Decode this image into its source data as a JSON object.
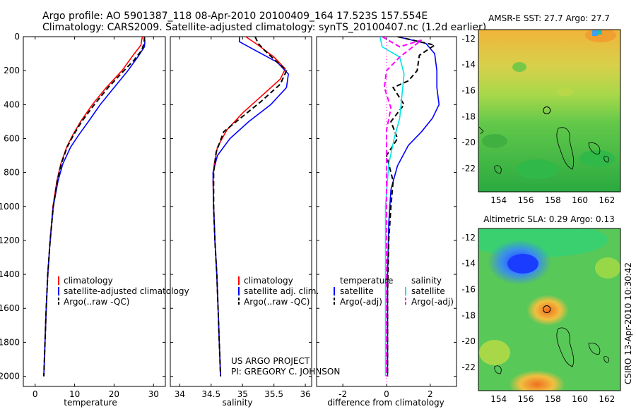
{
  "header": {
    "title_line1": "Argo profile: AO 5901387_118 08-Apr-2010 20100409_164 17.523S 157.554E",
    "title_line2": "Climatology: CARS2009. Satellite-adjusted climatology: synTS_20100407.nc (1.2d earlier)"
  },
  "colors": {
    "climatology": "#ff0000",
    "satellite": "#0000ff",
    "argo": "#000000",
    "cyan": "#00e5e5",
    "magenta": "#ff00ff"
  },
  "chart_data": [
    {
      "type": "line",
      "name": "temperature-panel",
      "xlabel": "temperature",
      "ylabel": "",
      "xlim": [
        -3,
        33
      ],
      "ylim": [
        2060,
        0
      ],
      "x_ticks": [
        "0",
        "10",
        "20",
        "30"
      ],
      "x_tick_values": [
        0,
        10,
        20,
        30
      ],
      "y_ticks": [
        "0",
        "200",
        "400",
        "600",
        "800",
        "1000",
        "1200",
        "1400",
        "1600",
        "1800",
        "2000"
      ],
      "y_tick_values": [
        0,
        200,
        400,
        600,
        800,
        1000,
        1200,
        1400,
        1600,
        1800,
        2000
      ],
      "legend": [
        "climatology",
        "satellite-adjusted climatology",
        "Argo(..raw -QC)"
      ],
      "series": [
        {
          "name": "climatology",
          "color": "#ff0000",
          "style": "solid",
          "points": [
            [
              27.2,
              0
            ],
            [
              27.0,
              20
            ],
            [
              26.8,
              50
            ],
            [
              24.5,
              120
            ],
            [
              22.0,
              200
            ],
            [
              18.0,
              300
            ],
            [
              14.5,
              400
            ],
            [
              11.5,
              500
            ],
            [
              9.5,
              580
            ],
            [
              8.0,
              650
            ],
            [
              6.5,
              750
            ],
            [
              5.5,
              850
            ],
            [
              4.5,
              1000
            ],
            [
              3.8,
              1200
            ],
            [
              3.2,
              1400
            ],
            [
              2.8,
              1600
            ],
            [
              2.5,
              1800
            ],
            [
              2.2,
              2000
            ]
          ]
        },
        {
          "name": "satellite",
          "color": "#0000ff",
          "style": "solid",
          "points": [
            [
              27.7,
              0
            ],
            [
              27.8,
              30
            ],
            [
              27.7,
              60
            ],
            [
              26.0,
              120
            ],
            [
              23.5,
              200
            ],
            [
              20.0,
              300
            ],
            [
              16.5,
              400
            ],
            [
              13.5,
              500
            ],
            [
              11.0,
              580
            ],
            [
              9.0,
              650
            ],
            [
              7.0,
              750
            ],
            [
              5.8,
              850
            ],
            [
              4.6,
              1000
            ],
            [
              3.8,
              1200
            ],
            [
              3.2,
              1400
            ],
            [
              2.8,
              1600
            ],
            [
              2.5,
              1800
            ],
            [
              2.2,
              2000
            ]
          ]
        },
        {
          "name": "argo",
          "color": "#000000",
          "style": "dashed",
          "points": [
            [
              27.7,
              0
            ],
            [
              27.6,
              40
            ],
            [
              27.0,
              80
            ],
            [
              25.0,
              140
            ],
            [
              22.5,
              200
            ],
            [
              18.5,
              300
            ],
            [
              15.0,
              400
            ],
            [
              11.8,
              500
            ],
            [
              9.7,
              580
            ],
            [
              8.1,
              650
            ],
            [
              6.6,
              750
            ],
            [
              5.6,
              850
            ],
            [
              4.6,
              1000
            ],
            [
              3.8,
              1200
            ],
            [
              3.2,
              1400
            ],
            [
              2.8,
              1600
            ],
            [
              2.5,
              1800
            ],
            [
              2.2,
              2000
            ]
          ]
        }
      ]
    },
    {
      "type": "line",
      "name": "salinity-panel",
      "xlabel": "salinity",
      "ylabel": "",
      "xlim": [
        33.85,
        36.1
      ],
      "ylim": [
        2060,
        0
      ],
      "x_ticks": [
        "34",
        "34.5",
        "35",
        "35.5",
        "36"
      ],
      "x_tick_values": [
        34,
        34.5,
        35,
        35.5,
        36
      ],
      "legend": [
        "climatology",
        "satellite adj. clim.",
        "Argo(..raw -QC)"
      ],
      "annotation_line1": "US ARGO PROJECT",
      "annotation_line2": "PI: GREGORY C. JOHNSON",
      "series": [
        {
          "name": "climatology",
          "color": "#ff0000",
          "style": "solid",
          "points": [
            [
              35.05,
              0
            ],
            [
              35.25,
              50
            ],
            [
              35.5,
              120
            ],
            [
              35.68,
              190
            ],
            [
              35.6,
              250
            ],
            [
              35.3,
              350
            ],
            [
              35.0,
              450
            ],
            [
              34.75,
              550
            ],
            [
              34.6,
              650
            ],
            [
              34.55,
              750
            ],
            [
              34.53,
              850
            ],
            [
              34.54,
              1000
            ],
            [
              34.56,
              1200
            ],
            [
              34.59,
              1400
            ],
            [
              34.61,
              1600
            ],
            [
              34.63,
              1800
            ],
            [
              34.65,
              2000
            ]
          ]
        },
        {
          "name": "satellite",
          "color": "#0000ff",
          "style": "solid",
          "points": [
            [
              34.95,
              0
            ],
            [
              34.95,
              30
            ],
            [
              35.2,
              80
            ],
            [
              35.55,
              150
            ],
            [
              35.73,
              220
            ],
            [
              35.7,
              300
            ],
            [
              35.45,
              400
            ],
            [
              35.1,
              500
            ],
            [
              34.8,
              600
            ],
            [
              34.6,
              700
            ],
            [
              34.53,
              800
            ],
            [
              34.54,
              1000
            ],
            [
              34.56,
              1200
            ],
            [
              34.59,
              1400
            ],
            [
              34.61,
              1600
            ],
            [
              34.63,
              1800
            ],
            [
              34.65,
              2000
            ]
          ]
        },
        {
          "name": "argo",
          "color": "#000000",
          "style": "dashed",
          "points": [
            [
              35.2,
              0
            ],
            [
              35.25,
              40
            ],
            [
              35.35,
              80
            ],
            [
              35.55,
              150
            ],
            [
              35.7,
              200
            ],
            [
              35.6,
              280
            ],
            [
              35.3,
              380
            ],
            [
              35.0,
              470
            ],
            [
              34.7,
              560
            ],
            [
              34.58,
              680
            ],
            [
              34.54,
              800
            ],
            [
              34.54,
              1000
            ],
            [
              34.56,
              1200
            ],
            [
              34.59,
              1400
            ],
            [
              34.61,
              1600
            ],
            [
              34.63,
              1800
            ],
            [
              34.65,
              2000
            ]
          ]
        }
      ]
    },
    {
      "type": "line",
      "name": "difference-panel",
      "xlabel": "difference from climatology",
      "ylabel": "",
      "xlim": [
        -3.2,
        3.2
      ],
      "ylim": [
        2060,
        0
      ],
      "x_ticks": [
        "-2",
        "0",
        "2"
      ],
      "x_tick_values": [
        -2,
        0,
        2
      ],
      "legend_temperature_heading": "temperature",
      "legend_salinity_heading": "salinity",
      "legend_items": [
        "satellite",
        "Argo(-adj)",
        "satellite",
        "Argo(-adj)"
      ],
      "series": [
        {
          "name": "temperature satellite",
          "color": "#0000ff",
          "style": "solid",
          "points": [
            [
              0.5,
              0
            ],
            [
              1.8,
              40
            ],
            [
              2.2,
              100
            ],
            [
              2.3,
              200
            ],
            [
              2.3,
              300
            ],
            [
              2.4,
              400
            ],
            [
              2.1,
              480
            ],
            [
              1.6,
              560
            ],
            [
              1.0,
              640
            ],
            [
              0.5,
              760
            ],
            [
              0.2,
              900
            ],
            [
              0.1,
              1100
            ],
            [
              0.05,
              1400
            ],
            [
              0.05,
              1700
            ],
            [
              0.05,
              2000
            ]
          ]
        },
        {
          "name": "temperature argo",
          "color": "#000000",
          "style": "dashed",
          "points": [
            [
              0.5,
              0
            ],
            [
              2.2,
              50
            ],
            [
              1.5,
              110
            ],
            [
              1.4,
              200
            ],
            [
              1.0,
              260
            ],
            [
              0.3,
              300
            ],
            [
              0.8,
              400
            ],
            [
              0.2,
              500
            ],
            [
              0.5,
              600
            ],
            [
              0.0,
              700
            ],
            [
              0.3,
              850
            ],
            [
              0.2,
              1000
            ],
            [
              0.1,
              1200
            ],
            [
              0.05,
              1500
            ],
            [
              0.05,
              1800
            ],
            [
              0.05,
              2000
            ]
          ]
        },
        {
          "name": "salinity satellite",
          "color": "#00e5e5",
          "style": "solid",
          "points": [
            [
              -0.3,
              0
            ],
            [
              -0.2,
              60
            ],
            [
              0.6,
              120
            ],
            [
              0.8,
              220
            ],
            [
              0.7,
              350
            ],
            [
              0.6,
              480
            ],
            [
              0.35,
              600
            ],
            [
              0.1,
              750
            ],
            [
              -0.05,
              1000
            ],
            [
              -0.05,
              1400
            ],
            [
              -0.05,
              1800
            ],
            [
              -0.05,
              2000
            ]
          ]
        },
        {
          "name": "salinity argo",
          "color": "#ff00ff",
          "style": "dashed",
          "points": [
            [
              -0.2,
              0
            ],
            [
              0.6,
              60
            ],
            [
              1.6,
              20
            ],
            [
              0.6,
              120
            ],
            [
              0.0,
              200
            ],
            [
              -0.1,
              300
            ],
            [
              0.2,
              420
            ],
            [
              0.0,
              550
            ],
            [
              0.0,
              800
            ],
            [
              0.0,
              1200
            ],
            [
              0.0,
              1600
            ],
            [
              0.0,
              2000
            ]
          ]
        }
      ]
    },
    {
      "type": "heatmap",
      "name": "sst-map",
      "title": "AMSR-E SST: 27.7 Argo: 27.7",
      "xlim": [
        152.5,
        163
      ],
      "ylim": [
        -23.8,
        -11.3
      ],
      "x_ticks": [
        "154",
        "156",
        "158",
        "160",
        "162"
      ],
      "x_tick_values": [
        154,
        156,
        158,
        160,
        162
      ],
      "y_ticks": [
        "-12",
        "-14",
        "-16",
        "-18",
        "-20",
        "-22"
      ],
      "y_tick_values": [
        -12,
        -14,
        -16,
        -18,
        -20,
        -22
      ],
      "marker": [
        157.554,
        -17.523
      ]
    },
    {
      "type": "heatmap",
      "name": "sla-map",
      "title": "Altimetric SLA: 0.29 Argo: 0.13",
      "xlim": [
        152.5,
        163
      ],
      "ylim": [
        -23.8,
        -11.3
      ],
      "x_ticks": [
        "154",
        "156",
        "158",
        "160",
        "162"
      ],
      "x_tick_values": [
        154,
        156,
        158,
        160,
        162
      ],
      "y_ticks": [
        "-12",
        "-14",
        "-16",
        "-18",
        "-20",
        "-22"
      ],
      "y_tick_values": [
        -12,
        -14,
        -16,
        -18,
        -20,
        -22
      ],
      "marker": [
        157.554,
        -17.523
      ]
    }
  ],
  "side_label": "CSIRO 13-Apr-2010 10:30:42"
}
